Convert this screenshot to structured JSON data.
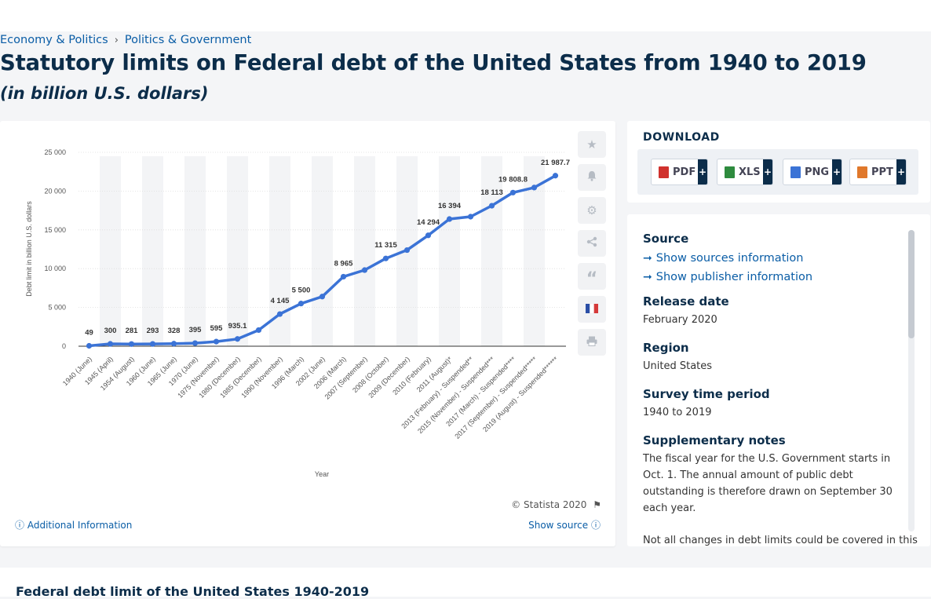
{
  "breadcrumb": {
    "item1": "Economy & Politics",
    "separator": "›",
    "item2": "Politics & Government"
  },
  "header": {
    "title": "Statutory limits on Federal debt of the United States from 1940 to 2019",
    "subtitle": "(in billion U.S. dollars)"
  },
  "chart_data": {
    "type": "line",
    "xlabel": "Year",
    "ylabel": "Debt limit in billion U.S. dollars",
    "ylim": [
      0,
      25000
    ],
    "yticks": [
      0,
      5000,
      10000,
      15000,
      20000,
      25000
    ],
    "ytick_labels": [
      "0",
      "5 000",
      "10 000",
      "15 000",
      "20 000",
      "25 000"
    ],
    "grid": true,
    "line_color": "#3b73d6",
    "categories": [
      "1940 (June)",
      "1945 (April)",
      "1954 (August)",
      "1960 (June)",
      "1965 (June)",
      "1970 (June)",
      "1975 (November)",
      "1980 (December)",
      "1985 (December)",
      "1990 (November)",
      "1996 (March)",
      "2002 (June)",
      "2006 (March)",
      "2007 (September)",
      "2008 (October)",
      "2009 (December)",
      "2010 (February)",
      "2011 (August)*",
      "2013 (February) - Suspended**",
      "2015 (November) - Suspended***",
      "2017 (March) - Suspended****",
      "2017 (September) - Suspended*****",
      "2019 (August) - Suspended******"
    ],
    "values": [
      49,
      300,
      281,
      293,
      328,
      395,
      595,
      935.1,
      2079,
      4145,
      5500,
      6400,
      8965,
      9815,
      11315,
      12394,
      14294,
      16394,
      16699,
      18113,
      19808.8,
      20456,
      21987.7
    ],
    "data_labels": [
      "49",
      "300",
      "281",
      "293",
      "328",
      "395",
      "595",
      "935.1",
      "",
      "4 145",
      "5 500",
      "",
      "8 965",
      "",
      "11 315",
      "",
      "14 294",
      "16 394",
      "",
      "18 113",
      "19 808.8",
      "",
      "21 987.7"
    ]
  },
  "chart_footer": {
    "copyright": "© Statista 2020",
    "additional_info": "Additional Information",
    "show_source": "Show source"
  },
  "toolbar_icons": [
    "star-icon",
    "bell-icon",
    "gear-icon",
    "share-icon",
    "quote-icon",
    "french-flag-icon",
    "print-icon"
  ],
  "download": {
    "title": "DOWNLOAD",
    "buttons": [
      {
        "label": "PDF",
        "color": "#d0312d"
      },
      {
        "label": "XLS",
        "color": "#2e8b3e"
      },
      {
        "label": "PNG",
        "color": "#3b73d6"
      },
      {
        "label": "PPT",
        "color": "#e0782b"
      }
    ],
    "plus": "+"
  },
  "info": {
    "source_heading": "Source",
    "show_sources": "Show sources information",
    "show_publisher": "Show publisher information",
    "release_heading": "Release date",
    "release_value": "February 2020",
    "region_heading": "Region",
    "region_value": "United States",
    "period_heading": "Survey time period",
    "period_value": "1940 to 2019",
    "notes_heading": "Supplementary notes",
    "notes_value": "The fiscal year for the U.S. Government starts in Oct. 1. The annual amount of public debt outstanding is therefore drawn on September 30 each year.",
    "notes_value2": "Not all changes in debt limits could be covered in this"
  },
  "bottom": {
    "title": "Federal debt limit of the United States 1940-2019"
  }
}
